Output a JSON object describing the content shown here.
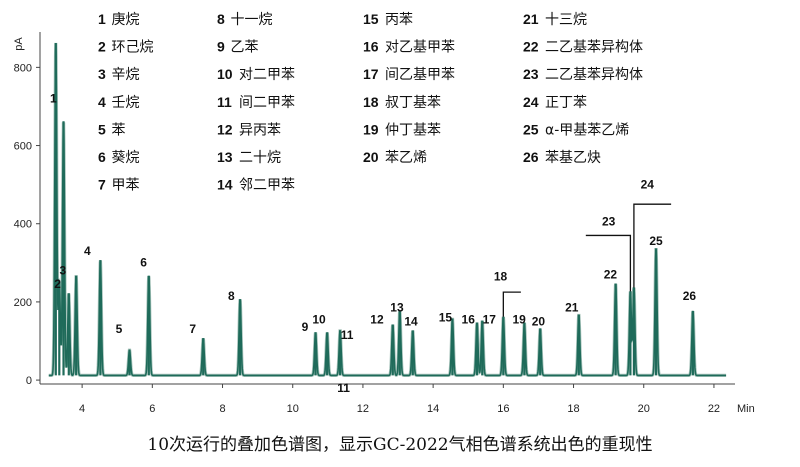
{
  "caption": "10次运行的叠加色谱图，显示GC-2022气相色谱系统出色的重现性",
  "legend": [
    {
      "num": "1",
      "name": "庚烷"
    },
    {
      "num": "2",
      "name": "环己烷"
    },
    {
      "num": "3",
      "name": "辛烷"
    },
    {
      "num": "4",
      "name": "壬烷"
    },
    {
      "num": "5",
      "name": "苯"
    },
    {
      "num": "6",
      "name": "葵烷"
    },
    {
      "num": "7",
      "name": "甲苯"
    },
    {
      "num": "8",
      "name": "十一烷"
    },
    {
      "num": "9",
      "name": "乙苯"
    },
    {
      "num": "10",
      "name": "对二甲苯"
    },
    {
      "num": "11",
      "name": "间二甲苯"
    },
    {
      "num": "12",
      "name": "异丙苯"
    },
    {
      "num": "13",
      "name": "二十烷"
    },
    {
      "num": "14",
      "name": "邻二甲苯"
    },
    {
      "num": "15",
      "name": "丙苯"
    },
    {
      "num": "16",
      "name": "对乙基甲苯"
    },
    {
      "num": "17",
      "name": "间乙基甲苯"
    },
    {
      "num": "18",
      "name": "叔丁基苯"
    },
    {
      "num": "19",
      "name": "仲丁基苯"
    },
    {
      "num": "20",
      "name": "苯乙烯"
    },
    {
      "num": "21",
      "name": "十三烷"
    },
    {
      "num": "22",
      "name": "二乙基苯异构体"
    },
    {
      "num": "23",
      "name": "二乙基苯异构体"
    },
    {
      "num": "24",
      "name": "正丁苯"
    },
    {
      "num": "25",
      "name": "α-甲基苯乙烯"
    },
    {
      "num": "26",
      "name": "苯基乙炔"
    }
  ],
  "chart_data": {
    "type": "line",
    "title": "",
    "xlabel": "Min",
    "ylabel": "pA",
    "xlim": [
      2.8,
      22.6
    ],
    "ylim": [
      -10,
      870
    ],
    "xticks": [
      4,
      6,
      8,
      10,
      12,
      14,
      16,
      18,
      20,
      22
    ],
    "yticks": [
      0,
      200,
      400,
      600,
      800
    ],
    "line_color": "#1f6b5a",
    "baseline": 12,
    "peaks": [
      {
        "label": "1",
        "rt": 3.25,
        "height": 850
      },
      {
        "label": "2",
        "rt": 3.35,
        "height": 240
      },
      {
        "label": "3",
        "rt": 3.47,
        "height": 650
      },
      {
        "label": "3",
        "rt": 3.62,
        "height": 210
      },
      {
        "label": "4",
        "rt": 3.83,
        "height": 255
      },
      {
        "label": "4",
        "rt": 4.52,
        "height": 295
      },
      {
        "label": "5",
        "rt": 5.35,
        "height": 65
      },
      {
        "label": "6",
        "rt": 5.9,
        "height": 255
      },
      {
        "label": "7",
        "rt": 7.45,
        "height": 95
      },
      {
        "label": "8",
        "rt": 8.5,
        "height": 195
      },
      {
        "label": "9",
        "rt": 10.65,
        "height": 110
      },
      {
        "label": "10",
        "rt": 10.98,
        "height": 110
      },
      {
        "label": "11",
        "rt": 11.35,
        "height": 115
      },
      {
        "label": "12",
        "rt": 12.85,
        "height": 130
      },
      {
        "label": "13",
        "rt": 13.05,
        "height": 165
      },
      {
        "label": "14",
        "rt": 13.42,
        "height": 115
      },
      {
        "label": "15",
        "rt": 14.55,
        "height": 145
      },
      {
        "label": "16",
        "rt": 15.25,
        "height": 135
      },
      {
        "label": "17",
        "rt": 15.4,
        "height": 140
      },
      {
        "label": "18",
        "rt": 16.0,
        "height": 150
      },
      {
        "label": "19",
        "rt": 16.6,
        "height": 135
      },
      {
        "label": "20",
        "rt": 17.05,
        "height": 120
      },
      {
        "label": "21",
        "rt": 18.15,
        "height": 155
      },
      {
        "label": "22",
        "rt": 19.2,
        "height": 235
      },
      {
        "label": "23",
        "rt": 19.62,
        "height": 215
      },
      {
        "label": "24",
        "rt": 19.72,
        "height": 225
      },
      {
        "label": "25",
        "rt": 20.35,
        "height": 325
      },
      {
        "label": "26",
        "rt": 21.4,
        "height": 165
      }
    ],
    "peak_labels": [
      {
        "text": "1",
        "x": 3.18,
        "y": 710
      },
      {
        "text": "2",
        "x": 3.3,
        "y": 235
      },
      {
        "text": "3",
        "x": 3.45,
        "y": 270
      },
      {
        "text": "4",
        "x": 4.15,
        "y": 320
      },
      {
        "text": "5",
        "x": 5.05,
        "y": 120
      },
      {
        "text": "6",
        "x": 5.75,
        "y": 290
      },
      {
        "text": "7",
        "x": 7.15,
        "y": 120
      },
      {
        "text": "8",
        "x": 8.25,
        "y": 205
      },
      {
        "text": "9",
        "x": 10.35,
        "y": 125
      },
      {
        "text": "10",
        "x": 10.75,
        "y": 145
      },
      {
        "text": "11",
        "x": 11.55,
        "y": 105
      },
      {
        "text": "11",
        "x": 11.45,
        "y": -30
      },
      {
        "text": "12",
        "x": 12.4,
        "y": 145
      },
      {
        "text": "13",
        "x": 12.97,
        "y": 175
      },
      {
        "text": "14",
        "x": 13.37,
        "y": 140
      },
      {
        "text": "15",
        "x": 14.35,
        "y": 150
      },
      {
        "text": "16",
        "x": 15.0,
        "y": 145
      },
      {
        "text": "17",
        "x": 15.6,
        "y": 145
      },
      {
        "text": "18",
        "x": 15.92,
        "y": 255
      },
      {
        "text": "19",
        "x": 16.45,
        "y": 145
      },
      {
        "text": "20",
        "x": 17.0,
        "y": 140
      },
      {
        "text": "21",
        "x": 17.95,
        "y": 175
      },
      {
        "text": "22",
        "x": 19.05,
        "y": 260
      },
      {
        "text": "23",
        "x": 19.0,
        "y": 395
      },
      {
        "text": "24",
        "x": 20.1,
        "y": 490
      },
      {
        "text": "25",
        "x": 20.35,
        "y": 345
      },
      {
        "text": "26",
        "x": 21.3,
        "y": 205
      }
    ],
    "callouts": [
      {
        "label": "18",
        "from_x": 16.0,
        "from_y": 150,
        "to_x": 16.5,
        "to_y": 225
      },
      {
        "label": "23",
        "from_x": 19.62,
        "from_y": 215,
        "to_x": 18.35,
        "to_y": 370
      },
      {
        "label": "24",
        "from_x": 19.72,
        "from_y": 225,
        "to_x": 20.78,
        "to_y": 450
      }
    ]
  }
}
